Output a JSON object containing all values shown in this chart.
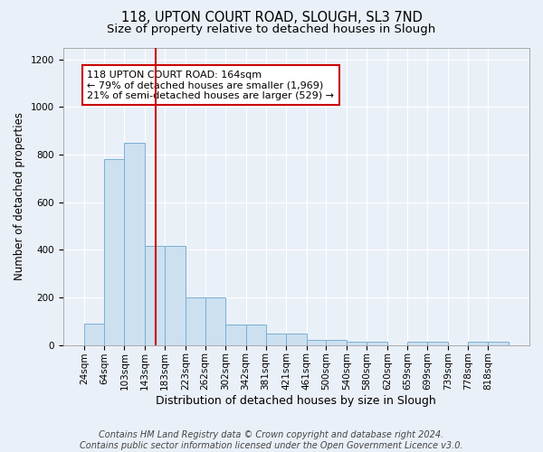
{
  "title": "118, UPTON COURT ROAD, SLOUGH, SL3 7ND",
  "subtitle": "Size of property relative to detached houses in Slough",
  "xlabel": "Distribution of detached houses by size in Slough",
  "ylabel": "Number of detached properties",
  "bar_edges": [
    24,
    64,
    103,
    143,
    183,
    223,
    262,
    302,
    342,
    381,
    421,
    461,
    500,
    540,
    580,
    620,
    659,
    699,
    739,
    778,
    818
  ],
  "bar_heights": [
    90,
    780,
    850,
    415,
    415,
    200,
    200,
    85,
    85,
    50,
    50,
    20,
    20,
    15,
    15,
    0,
    15,
    15,
    0,
    15,
    15
  ],
  "bar_color": "#cce0f0",
  "bar_edgecolor": "#7ab0d4",
  "property_line_x": 164,
  "property_line_color": "#cc0000",
  "annotation_text": "118 UPTON COURT ROAD: 164sqm\n← 79% of detached houses are smaller (1,969)\n21% of semi-detached houses are larger (529) →",
  "annotation_box_color": "#ffffff",
  "annotation_box_edgecolor": "#cc0000",
  "ylim": [
    0,
    1250
  ],
  "yticks": [
    0,
    200,
    400,
    600,
    800,
    1000,
    1200
  ],
  "background_color": "#eaf0f8",
  "grid_color": "#ffffff",
  "footer": "Contains HM Land Registry data © Crown copyright and database right 2024.\nContains public sector information licensed under the Open Government Licence v3.0.",
  "title_fontsize": 10.5,
  "subtitle_fontsize": 9.5,
  "xlabel_fontsize": 9,
  "ylabel_fontsize": 8.5,
  "tick_fontsize": 7.5,
  "annotation_fontsize": 8,
  "footer_fontsize": 7
}
